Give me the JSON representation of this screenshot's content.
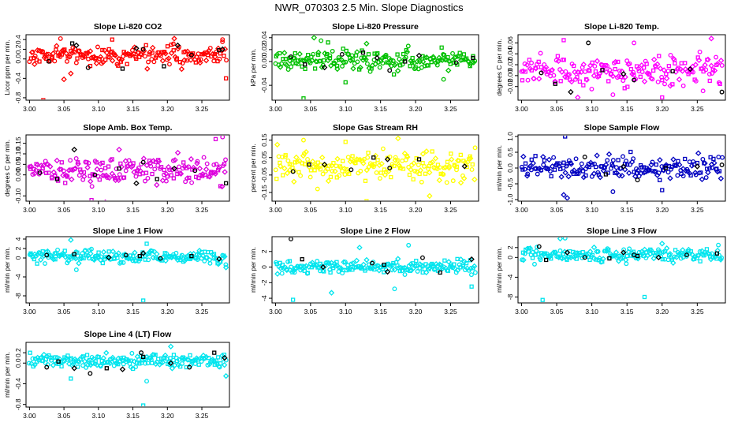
{
  "figure_title": "NWR_070303  2.5 Min. Slope Diagnostics",
  "chart_data": [
    {
      "type": "scatter",
      "title": "Slope Li-820 CO2",
      "ylabel": "Licor ppm per min.",
      "color": "#ff0000",
      "xlim": [
        2.995,
        3.29
      ],
      "ylim": [
        -0.85,
        0.5
      ],
      "xticks": [
        "3.00",
        "3.05",
        "3.10",
        "3.15",
        "3.20",
        "3.25"
      ],
      "yticks": [
        "-0.8",
        "-0.4",
        "0.0",
        "0.2",
        "0.4"
      ],
      "center": 0.08,
      "spread": 0.15,
      "outliers": [
        [
          3.02,
          -0.85
        ],
        [
          3.05,
          -0.42
        ],
        [
          3.045,
          0.42
        ],
        [
          3.12,
          0.4
        ],
        [
          3.21,
          0.42
        ],
        [
          3.28,
          0.4
        ],
        [
          3.285,
          -0.4
        ],
        [
          3.06,
          -0.3
        ]
      ],
      "black": [
        [
          3.028,
          -0.05
        ],
        [
          3.062,
          0.32
        ],
        [
          3.068,
          0.28
        ],
        [
          3.085,
          -0.18
        ],
        [
          3.135,
          -0.2
        ],
        [
          3.155,
          0.22
        ],
        [
          3.165,
          0.2
        ],
        [
          3.195,
          -0.15
        ],
        [
          3.215,
          0.28
        ],
        [
          3.235,
          0.08
        ],
        [
          3.275,
          0.18
        ],
        [
          3.28,
          0.2
        ]
      ]
    },
    {
      "type": "scatter",
      "title": "Slope Li-820 Pressure",
      "ylabel": "kPa per min.",
      "color": "#00c000",
      "xlim": [
        2.995,
        3.29
      ],
      "ylim": [
        -0.065,
        0.045
      ],
      "xticks": [
        "3.00",
        "3.05",
        "3.10",
        "3.15",
        "3.20",
        "3.25"
      ],
      "yticks": [
        "-0.04",
        "0.00",
        "0.02",
        "0.04"
      ],
      "center": 0.002,
      "spread": 0.012,
      "outliers": [
        [
          3.04,
          -0.062
        ],
        [
          3.055,
          0.04
        ],
        [
          3.065,
          0.035
        ],
        [
          3.1,
          -0.035
        ],
        [
          3.13,
          0.03
        ],
        [
          3.24,
          -0.03
        ],
        [
          3.075,
          0.032
        ]
      ],
      "black": [
        [
          3.022,
          0.008
        ],
        [
          3.042,
          -0.005
        ],
        [
          3.07,
          -0.01
        ],
        [
          3.095,
          0.012
        ],
        [
          3.125,
          0.015
        ],
        [
          3.145,
          0.006
        ],
        [
          3.163,
          -0.015
        ],
        [
          3.185,
          0.0
        ],
        [
          3.205,
          0.01
        ],
        [
          3.258,
          -0.002
        ],
        [
          3.282,
          0.006
        ]
      ]
    },
    {
      "type": "scatter",
      "title": "Slope Li-820 Temp.",
      "ylabel": "degrees C per min.",
      "color": "#ff00ff",
      "xlim": [
        2.995,
        3.29
      ],
      "ylim": [
        -0.045,
        0.075
      ],
      "xticks": [
        "3.00",
        "3.05",
        "3.10",
        "3.15",
        "3.20",
        "3.25"
      ],
      "yticks": [
        "-0.02",
        "0.00",
        "0.02",
        "0.04",
        "0.06"
      ],
      "center": 0.008,
      "spread": 0.02,
      "outliers": [
        [
          3.06,
          0.065
        ],
        [
          3.08,
          -0.04
        ],
        [
          3.16,
          0.06
        ],
        [
          3.2,
          -0.04
        ],
        [
          3.27,
          0.068
        ],
        [
          3.13,
          -0.035
        ]
      ],
      "black": [
        [
          3.028,
          0.005
        ],
        [
          3.048,
          -0.015
        ],
        [
          3.07,
          -0.03
        ],
        [
          3.095,
          0.06
        ],
        [
          3.115,
          0.01
        ],
        [
          3.145,
          0.003
        ],
        [
          3.16,
          -0.008
        ],
        [
          3.215,
          0.008
        ],
        [
          3.24,
          0.012
        ],
        [
          3.285,
          -0.03
        ]
      ]
    },
    {
      "type": "scatter",
      "title": "Slope Amb. Box Temp.",
      "ylabel": "degrees C per min.",
      "color": "#dd00dd",
      "xlim": [
        2.995,
        3.29
      ],
      "ylim": [
        -0.125,
        0.19
      ],
      "xticks": [
        "3.00",
        "3.05",
        "3.10",
        "3.15",
        "3.20",
        "3.25"
      ],
      "yticks": [
        "-0.10",
        "0.00",
        "0.05",
        "0.10",
        "0.15"
      ],
      "center": 0.02,
      "spread": 0.045,
      "outliers": [
        [
          3.09,
          -0.12
        ],
        [
          3.11,
          -0.13
        ],
        [
          3.28,
          0.18
        ],
        [
          3.27,
          0.17
        ],
        [
          3.13,
          0.12
        ]
      ],
      "black": [
        [
          3.015,
          0.01
        ],
        [
          3.04,
          -0.02
        ],
        [
          3.065,
          0.12
        ],
        [
          3.095,
          0.0
        ],
        [
          3.13,
          0.03
        ],
        [
          3.155,
          -0.04
        ],
        [
          3.165,
          0.06
        ],
        [
          3.185,
          -0.02
        ],
        [
          3.21,
          0.03
        ],
        [
          3.24,
          0.02
        ],
        [
          3.285,
          -0.04
        ]
      ]
    },
    {
      "type": "scatter",
      "title": "Slope Gas Stream RH",
      "ylabel": "percent per min.",
      "color": "#ffff00",
      "xlim": [
        2.995,
        3.29
      ],
      "ylim": [
        -0.2,
        0.18
      ],
      "xticks": [
        "3.00",
        "3.05",
        "3.10",
        "3.15",
        "3.20",
        "3.25"
      ],
      "yticks": [
        "-0.15",
        "-0.05",
        "0.05",
        "0.15"
      ],
      "center": 0.0,
      "spread": 0.06,
      "outliers": [
        [
          3.13,
          -0.2
        ],
        [
          3.175,
          0.16
        ],
        [
          3.04,
          0.15
        ],
        [
          3.1,
          0.14
        ],
        [
          3.22,
          -0.17
        ],
        [
          3.06,
          -0.13
        ]
      ],
      "black": [
        [
          3.025,
          -0.03
        ],
        [
          3.048,
          0.01
        ],
        [
          3.07,
          0.01
        ],
        [
          3.108,
          -0.02
        ],
        [
          3.14,
          0.05
        ],
        [
          3.16,
          0.04
        ],
        [
          3.163,
          -0.01
        ],
        [
          3.205,
          0.04
        ],
        [
          3.27,
          0.0
        ]
      ]
    },
    {
      "type": "scatter",
      "title": "Slope Sample Flow",
      "ylabel": "ml/min per min.",
      "color": "#0000c0",
      "xlim": [
        2.995,
        3.29
      ],
      "ylim": [
        -1.05,
        1.05
      ],
      "xticks": [
        "3.00",
        "3.05",
        "3.10",
        "3.15",
        "3.20",
        "3.25"
      ],
      "yticks": [
        "-1.0",
        "-0.5",
        "0.0",
        "0.5",
        "1.0"
      ],
      "center": 0.0,
      "spread": 0.28,
      "outliers": [
        [
          3.062,
          1.0
        ],
        [
          3.065,
          -0.95
        ],
        [
          3.13,
          -0.75
        ],
        [
          3.2,
          -0.7
        ],
        [
          3.06,
          -0.85
        ]
      ],
      "black": [
        [
          3.09,
          0.35
        ],
        [
          3.12,
          -0.2
        ],
        [
          3.145,
          0.05
        ],
        [
          3.165,
          -0.38
        ],
        [
          3.205,
          0.0
        ],
        [
          3.25,
          0.05
        ],
        [
          3.285,
          0.1
        ]
      ]
    },
    {
      "type": "scatter",
      "title": "Slope Line 1 Flow",
      "ylabel": "ml/min per min.",
      "color": "#00e5ee",
      "xlim": [
        2.995,
        3.29
      ],
      "ylim": [
        -9.5,
        4.5
      ],
      "xticks": [
        "3.00",
        "3.05",
        "3.10",
        "3.15",
        "3.20",
        "3.25"
      ],
      "yticks": [
        "-8",
        "-4",
        "0",
        "2",
        "4"
      ],
      "center": 0.2,
      "spread": 0.9,
      "outliers": [
        [
          3.165,
          -9.0
        ],
        [
          3.06,
          3.8
        ],
        [
          3.068,
          -2.5
        ],
        [
          3.17,
          3.0
        ],
        [
          3.285,
          -2.0
        ]
      ],
      "black": [
        [
          3.025,
          0.6
        ],
        [
          3.065,
          0.8
        ],
        [
          3.115,
          0.1
        ],
        [
          3.14,
          0.6
        ],
        [
          3.16,
          0.4
        ],
        [
          3.165,
          1.0
        ],
        [
          3.19,
          -0.1
        ],
        [
          3.235,
          0.4
        ],
        [
          3.275,
          -0.2
        ]
      ]
    },
    {
      "type": "scatter",
      "title": "Slope Line 2 Flow",
      "ylabel": "ml/min per min.",
      "color": "#00e5ee",
      "xlim": [
        2.995,
        3.29
      ],
      "ylim": [
        -4.6,
        3.9
      ],
      "xticks": [
        "3.00",
        "3.05",
        "3.10",
        "3.15",
        "3.20",
        "3.25"
      ],
      "yticks": [
        "-4",
        "-2",
        "0",
        "2"
      ],
      "center": 0.0,
      "spread": 0.6,
      "outliers": [
        [
          3.025,
          -4.2
        ],
        [
          3.08,
          -3.3
        ],
        [
          3.17,
          -2.8
        ],
        [
          3.28,
          -2.5
        ],
        [
          3.12,
          2.5
        ],
        [
          3.19,
          2.8
        ]
      ],
      "black": [
        [
          3.022,
          3.6
        ],
        [
          3.038,
          1.0
        ],
        [
          3.068,
          0.0
        ],
        [
          3.138,
          0.5
        ],
        [
          3.155,
          0.3
        ],
        [
          3.16,
          -0.6
        ],
        [
          3.21,
          1.2
        ],
        [
          3.235,
          -0.7
        ],
        [
          3.28,
          1.0
        ]
      ]
    },
    {
      "type": "scatter",
      "title": "Slope Line 3 Flow",
      "ylabel": "ml/min per min.",
      "color": "#00e5ee",
      "xlim": [
        2.995,
        3.29
      ],
      "ylim": [
        -9.2,
        4.2
      ],
      "xticks": [
        "3.00",
        "3.05",
        "3.10",
        "3.15",
        "3.20",
        "3.25"
      ],
      "yticks": [
        "-8",
        "-4",
        "0",
        "2"
      ],
      "center": 0.5,
      "spread": 1.0,
      "outliers": [
        [
          3.03,
          -8.6
        ],
        [
          3.055,
          3.8
        ],
        [
          3.062,
          3.9
        ],
        [
          3.175,
          -8.0
        ],
        [
          3.2,
          2.8
        ],
        [
          3.28,
          2.5
        ]
      ],
      "black": [
        [
          3.025,
          2.2
        ],
        [
          3.035,
          -0.5
        ],
        [
          3.065,
          1.0
        ],
        [
          3.09,
          0.0
        ],
        [
          3.125,
          -0.2
        ],
        [
          3.145,
          1.0
        ],
        [
          3.16,
          0.5
        ],
        [
          3.165,
          0.3
        ],
        [
          3.195,
          0.0
        ],
        [
          3.235,
          0.5
        ],
        [
          3.278,
          0.8
        ]
      ]
    },
    {
      "type": "scatter",
      "title": "Slope Line 4 (LT) Flow",
      "ylabel": "ml/min per min.",
      "color": "#00e5ee",
      "xlim": [
        2.995,
        3.29
      ],
      "ylim": [
        -0.85,
        0.4
      ],
      "xticks": [
        "3.00",
        "3.05",
        "3.10",
        "3.15",
        "3.20",
        "3.25"
      ],
      "yticks": [
        "-0.8",
        "-0.4",
        "0.0",
        "0.2"
      ],
      "center": 0.05,
      "spread": 0.1,
      "outliers": [
        [
          3.165,
          -0.82
        ],
        [
          3.205,
          0.32
        ],
        [
          3.17,
          -0.35
        ],
        [
          3.06,
          -0.3
        ],
        [
          3.285,
          -0.25
        ]
      ],
      "black": [
        [
          3.025,
          -0.08
        ],
        [
          3.042,
          0.03
        ],
        [
          3.065,
          -0.1
        ],
        [
          3.088,
          -0.2
        ],
        [
          3.112,
          -0.1
        ],
        [
          3.135,
          -0.12
        ],
        [
          3.162,
          0.2
        ],
        [
          3.165,
          0.12
        ],
        [
          3.205,
          0.0
        ],
        [
          3.232,
          -0.08
        ],
        [
          3.268,
          0.2
        ],
        [
          3.283,
          0.1
        ]
      ]
    }
  ]
}
